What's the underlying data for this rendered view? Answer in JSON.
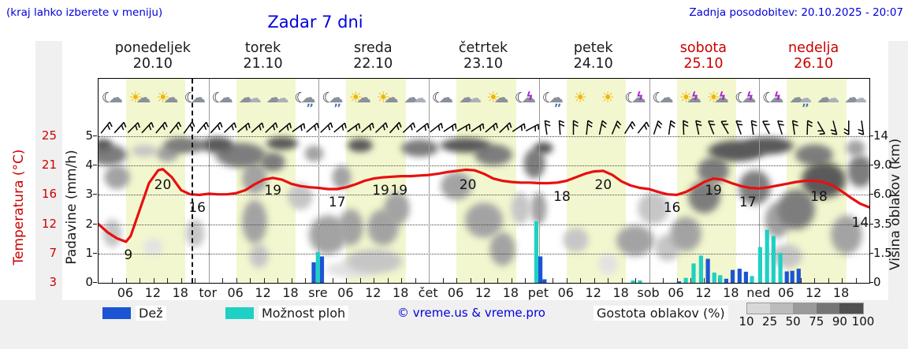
{
  "header": {
    "hint": "(kraj lahko izberete v meniju)",
    "title": "Zadar 7 dni",
    "updated": "Zadnja posodobitev: 20.10.2025 - 20:07"
  },
  "days": [
    {
      "name": "ponedeljek",
      "date": "20.10",
      "weekend": false
    },
    {
      "name": "torek",
      "date": "21.10",
      "weekend": false
    },
    {
      "name": "sreda",
      "date": "22.10",
      "weekend": false
    },
    {
      "name": "četrtek",
      "date": "23.10",
      "weekend": false
    },
    {
      "name": "petek",
      "date": "24.10",
      "weekend": false
    },
    {
      "name": "sobota",
      "date": "25.10",
      "weekend": true
    },
    {
      "name": "nedelja",
      "date": "26.10",
      "weekend": true
    }
  ],
  "icons": [
    "moon-cloud",
    "sun-cloud",
    "sun-cloud",
    "moon-cloud",
    "moon-cloud",
    "clouds",
    "clouds",
    "moon-cloud-rain",
    "moon-cloud-rain",
    "sun-cloud",
    "sun-cloud",
    "clouds",
    "moon-cloud",
    "clouds",
    "sun-cloud",
    "moon-cloud-storm",
    "moon-cloud-rain",
    "sun",
    "sun",
    "moon-cloud-storm",
    "moon-cloud",
    "sun-storm",
    "sun-storm",
    "moon-cloud-storm",
    "moon-cloud-storm",
    "clouds-rain",
    "clouds",
    "clouds"
  ],
  "axes": {
    "temp_label": "Temperatura (°C)",
    "temp_ticks": [
      "3",
      "7",
      "12",
      "16",
      "21",
      "25"
    ],
    "precip_label": "Padavine (mm/h)",
    "precip_ticks": [
      "0",
      "1",
      "2",
      "3",
      "4",
      "5"
    ],
    "cloud_label": "Višina oblakov (km)",
    "cloud_ticks": [
      "0",
      "1.5",
      "3.5",
      "6.0",
      "9.0",
      "14"
    ],
    "hour_labels": [
      "06",
      "12",
      "18"
    ],
    "day_abbrevs": [
      "tor",
      "sre",
      "čet",
      "pet",
      "sob",
      "ned"
    ]
  },
  "legend": {
    "rain_label": "Dež",
    "showers_label": "Možnost ploh",
    "copyright": "© vreme.us & vreme.pro",
    "cloud_label": "Gostota oblakov (%)",
    "cloud_scale": [
      "10",
      "25",
      "50",
      "75",
      "90",
      "100"
    ]
  },
  "colors": {
    "rain": "#1c55d4",
    "showers": "#1fd0c4",
    "temperature": "#e81010",
    "link_blue": "#0000dd",
    "weekend_red": "#cc0000",
    "day_band": "#f3f7cf",
    "cloud_shades": {
      "10": "#e2e2e2",
      "25": "#c6c6c6",
      "50": "#a3a3a3",
      "75": "#7d7d7d",
      "90": "#5a5a5a"
    },
    "scale_segments": [
      "#d8d8d8",
      "#bcbcbc",
      "#9a9a9a",
      "#757575",
      "#4f4f4f"
    ]
  },
  "chart_data": {
    "type": "meteogram",
    "now_hour": 20.3,
    "temp_scale_ticks": [
      3,
      7,
      12,
      16,
      21,
      25
    ],
    "cloud_km_ticks": [
      0,
      1.5,
      3.5,
      6,
      9,
      14
    ],
    "precip_axis_max": 5,
    "temperature_series": [
      [
        0,
        12
      ],
      [
        2,
        10.6
      ],
      [
        4,
        9.6
      ],
      [
        6,
        9
      ],
      [
        7,
        10
      ],
      [
        9,
        14
      ],
      [
        11,
        18
      ],
      [
        13,
        20.2
      ],
      [
        14,
        20.4
      ],
      [
        16,
        19
      ],
      [
        18,
        16.8
      ],
      [
        20,
        16.1
      ],
      [
        22,
        16
      ],
      [
        24,
        16.2
      ],
      [
        26,
        16.1
      ],
      [
        28,
        16.1
      ],
      [
        30,
        16.3
      ],
      [
        32,
        16.8
      ],
      [
        34,
        17.8
      ],
      [
        36,
        18.6
      ],
      [
        38,
        18.9
      ],
      [
        40,
        18.6
      ],
      [
        42,
        17.9
      ],
      [
        44,
        17.5
      ],
      [
        46,
        17.3
      ],
      [
        48,
        17.2
      ],
      [
        50,
        17.0
      ],
      [
        52,
        17.0
      ],
      [
        54,
        17.3
      ],
      [
        56,
        17.8
      ],
      [
        58,
        18.4
      ],
      [
        60,
        18.8
      ],
      [
        62,
        19.0
      ],
      [
        64,
        19.1
      ],
      [
        66,
        19.2
      ],
      [
        68,
        19.2
      ],
      [
        70,
        19.3
      ],
      [
        72,
        19.4
      ],
      [
        74,
        19.6
      ],
      [
        76,
        19.9
      ],
      [
        78,
        20.1
      ],
      [
        80,
        20.3
      ],
      [
        82,
        20.2
      ],
      [
        84,
        19.6
      ],
      [
        86,
        18.8
      ],
      [
        88,
        18.4
      ],
      [
        90,
        18.2
      ],
      [
        92,
        18.1
      ],
      [
        94,
        18.1
      ],
      [
        96,
        18.0
      ],
      [
        98,
        18.0
      ],
      [
        100,
        18.1
      ],
      [
        102,
        18.4
      ],
      [
        104,
        19.0
      ],
      [
        106,
        19.6
      ],
      [
        108,
        20.0
      ],
      [
        110,
        20.1
      ],
      [
        112,
        19.4
      ],
      [
        114,
        18.3
      ],
      [
        116,
        17.6
      ],
      [
        118,
        17.2
      ],
      [
        120,
        17.0
      ],
      [
        122,
        16.5
      ],
      [
        124,
        16.1
      ],
      [
        126,
        16.0
      ],
      [
        128,
        16.5
      ],
      [
        130,
        17.3
      ],
      [
        132,
        18.2
      ],
      [
        134,
        18.8
      ],
      [
        136,
        18.6
      ],
      [
        138,
        18.0
      ],
      [
        140,
        17.5
      ],
      [
        142,
        17.2
      ],
      [
        144,
        17.1
      ],
      [
        146,
        17.3
      ],
      [
        148,
        17.6
      ],
      [
        150,
        17.9
      ],
      [
        152,
        18.2
      ],
      [
        154,
        18.4
      ],
      [
        156,
        18.4
      ],
      [
        158,
        18.2
      ],
      [
        160,
        17.6
      ],
      [
        162,
        16.6
      ],
      [
        164,
        15.6
      ],
      [
        166,
        14.8
      ],
      [
        168,
        14.3
      ]
    ],
    "temp_annotations": [
      {
        "hour": 6.5,
        "value": 9
      },
      {
        "hour": 14,
        "value": 20
      },
      {
        "hour": 21.5,
        "value": 16
      },
      {
        "hour": 38,
        "value": 19
      },
      {
        "hour": 52,
        "value": 17
      },
      {
        "hour": 61.5,
        "value": 19
      },
      {
        "hour": 65.5,
        "value": 19
      },
      {
        "hour": 80.5,
        "value": 20
      },
      {
        "hour": 101,
        "value": 18
      },
      {
        "hour": 110,
        "value": 20
      },
      {
        "hour": 125,
        "value": 16
      },
      {
        "hour": 134,
        "value": 19
      },
      {
        "hour": 141.5,
        "value": 17
      },
      {
        "hour": 157,
        "value": 18
      },
      {
        "hour": 166,
        "value": 14
      }
    ],
    "precipitation_bars": [
      {
        "hour": 46.9,
        "mm": 0.7,
        "type": "rain"
      },
      {
        "hour": 47.8,
        "mm": 1.05,
        "type": "shower"
      },
      {
        "hour": 48.7,
        "mm": 0.9,
        "type": "rain"
      },
      {
        "hour": 95.4,
        "mm": 2.1,
        "type": "shower"
      },
      {
        "hour": 96.3,
        "mm": 0.9,
        "type": "rain"
      },
      {
        "hour": 97.2,
        "mm": 0.12,
        "type": "rain"
      },
      {
        "hour": 116.5,
        "mm": 0.08,
        "type": "shower"
      },
      {
        "hour": 118.0,
        "mm": 0.08,
        "type": "shower"
      },
      {
        "hour": 126.5,
        "mm": 0.05,
        "type": "rain"
      },
      {
        "hour": 128.0,
        "mm": 0.17,
        "type": "shower"
      },
      {
        "hour": 129.7,
        "mm": 0.66,
        "type": "shower"
      },
      {
        "hour": 131.3,
        "mm": 0.93,
        "type": "shower"
      },
      {
        "hour": 132.8,
        "mm": 0.82,
        "type": "rain"
      },
      {
        "hour": 134.2,
        "mm": 0.35,
        "type": "shower"
      },
      {
        "hour": 135.5,
        "mm": 0.26,
        "type": "shower"
      },
      {
        "hour": 136.8,
        "mm": 0.14,
        "type": "rain"
      },
      {
        "hour": 138.2,
        "mm": 0.44,
        "type": "rain"
      },
      {
        "hour": 139.7,
        "mm": 0.48,
        "type": "rain"
      },
      {
        "hour": 141.1,
        "mm": 0.38,
        "type": "rain"
      },
      {
        "hour": 142.4,
        "mm": 0.23,
        "type": "shower"
      },
      {
        "hour": 144.2,
        "mm": 1.22,
        "type": "shower"
      },
      {
        "hour": 145.7,
        "mm": 1.81,
        "type": "shower"
      },
      {
        "hour": 147.1,
        "mm": 1.6,
        "type": "shower"
      },
      {
        "hour": 148.6,
        "mm": 1.02,
        "type": "shower"
      },
      {
        "hour": 150.0,
        "mm": 0.39,
        "type": "rain"
      },
      {
        "hour": 151.2,
        "mm": 0.41,
        "type": "rain"
      },
      {
        "hour": 152.6,
        "mm": 0.48,
        "type": "rain"
      }
    ],
    "wind_barb_angles_deg": [
      38,
      42,
      45,
      43,
      40,
      38,
      36,
      40,
      42,
      46,
      50,
      48,
      46,
      50,
      54,
      50,
      46,
      50,
      54,
      50,
      46,
      42,
      46,
      52,
      52,
      56,
      60,
      56,
      50,
      46,
      56,
      62,
      -8,
      -4,
      0,
      6,
      12,
      22,
      32,
      38,
      18,
      8,
      -2,
      -12,
      -22,
      -30,
      -20,
      -8,
      -28,
      -18,
      -8,
      2,
      150,
      165,
      180,
      172
    ],
    "cloud_field": [
      [
        2,
        11,
        6,
        2.5,
        75
      ],
      [
        1,
        12.5,
        3,
        1.5,
        90
      ],
      [
        4,
        8,
        4,
        2,
        50
      ],
      [
        3,
        3,
        3,
        1.5,
        25
      ],
      [
        10,
        11.5,
        4,
        1.5,
        25
      ],
      [
        12,
        2,
        3,
        0.8,
        10
      ],
      [
        15,
        11,
        3.5,
        2,
        50
      ],
      [
        17,
        12.5,
        4,
        1.8,
        75
      ],
      [
        21,
        3,
        3,
        1.5,
        25
      ],
      [
        20,
        12.5,
        5,
        1.8,
        75
      ],
      [
        26,
        12.5,
        5,
        2,
        90
      ],
      [
        31,
        11,
        8,
        2.8,
        75
      ],
      [
        34,
        8,
        4,
        2.5,
        50
      ],
      [
        34,
        4,
        4,
        2.5,
        50
      ],
      [
        35,
        1.5,
        3,
        1,
        25
      ],
      [
        40,
        12.8,
        5,
        1.6,
        90
      ],
      [
        38,
        10,
        4,
        2,
        75
      ],
      [
        44,
        6,
        4,
        1.8,
        25
      ],
      [
        47,
        11,
        3,
        2,
        50
      ],
      [
        50,
        3,
        6,
        2,
        50
      ],
      [
        53,
        8,
        3,
        2,
        50
      ],
      [
        55,
        0.7,
        8,
        0.6,
        10
      ],
      [
        57,
        12.5,
        4,
        1.7,
        90
      ],
      [
        55,
        3.5,
        4,
        2,
        50
      ],
      [
        62,
        3.5,
        5,
        2,
        50
      ],
      [
        60,
        1.2,
        9,
        1,
        25
      ],
      [
        65,
        5,
        4,
        2,
        50
      ],
      [
        70,
        12,
        6,
        2.2,
        75
      ],
      [
        80,
        12.5,
        8,
        1.8,
        90
      ],
      [
        86,
        11,
        6,
        2.5,
        75
      ],
      [
        78,
        7,
        5,
        2,
        50
      ],
      [
        84,
        4,
        6,
        2,
        50
      ],
      [
        88,
        2,
        4,
        1.5,
        50
      ],
      [
        92,
        5,
        3,
        2,
        25
      ],
      [
        95,
        10,
        3.5,
        3,
        75
      ],
      [
        96,
        5,
        2.5,
        2,
        50
      ],
      [
        97,
        12,
        3,
        1.5,
        90
      ],
      [
        104,
        2.5,
        4,
        1.2,
        25
      ],
      [
        111,
        1,
        3,
        0.8,
        10
      ],
      [
        117,
        2.5,
        6,
        1.5,
        50
      ],
      [
        121,
        5,
        5,
        2,
        25
      ],
      [
        124,
        2,
        4,
        1.2,
        25
      ],
      [
        128,
        3,
        5,
        1.8,
        50
      ],
      [
        132,
        6,
        5,
        2.2,
        75
      ],
      [
        134,
        9,
        5,
        2.5,
        75
      ],
      [
        139,
        11.5,
        9,
        2.6,
        90
      ],
      [
        146,
        12.5,
        8,
        2.2,
        90
      ],
      [
        143,
        7,
        5,
        2.5,
        75
      ],
      [
        148,
        4,
        4,
        2,
        50
      ],
      [
        150,
        1.5,
        5,
        1,
        25
      ],
      [
        152,
        5,
        6,
        2.5,
        75
      ],
      [
        158,
        8,
        7,
        3,
        90
      ],
      [
        156,
        11,
        6,
        2.5,
        75
      ],
      [
        163,
        3,
        5,
        2,
        50
      ],
      [
        166,
        9,
        4,
        3,
        75
      ],
      [
        165,
        12,
        3,
        2,
        50
      ]
    ]
  }
}
